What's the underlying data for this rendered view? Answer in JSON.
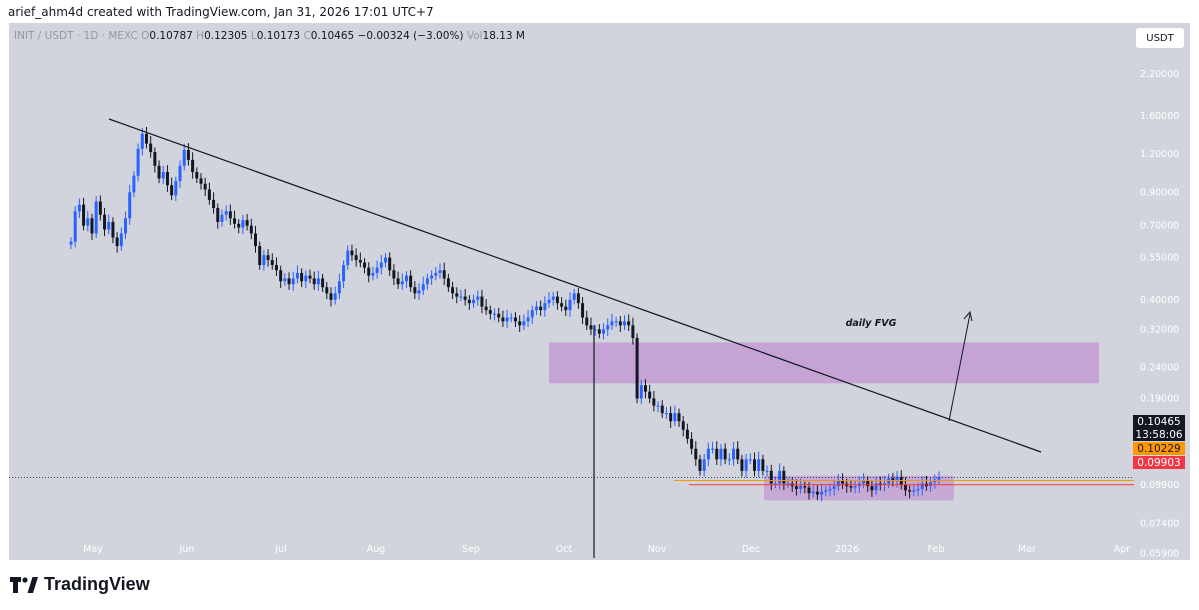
{
  "header": {
    "attribution": "arief_ahm4d created with TradingView.com, Jan 31, 2026 17:01 UTC+7"
  },
  "legend": {
    "symbol": "INIT / USDT · 1D · MEXC",
    "open_label": "O",
    "open": "0.10787",
    "high_label": "H",
    "high": "0.12305",
    "low_label": "L",
    "low": "0.10173",
    "close_label": "C",
    "close": "0.10465",
    "change": "−0.00324 (−3.00%)",
    "vol_label": "Vol",
    "vol": "18.13 M"
  },
  "currency_button": "USDT",
  "price_tags": {
    "last": "0.10465",
    "countdown": "13:58:06",
    "orange": "0.10229",
    "red": "0.09903"
  },
  "brand": {
    "name": "TradingView",
    "logo_icon": "tradingview-logo-icon"
  },
  "colors": {
    "background": "#d1d4dc",
    "candle_up": "#2962ff",
    "candle_down": "#131722",
    "zone": "#c39bd3",
    "orange_tag": "#ff9800",
    "red_tag": "#f23645"
  },
  "chart_data": {
    "type": "candlestick",
    "y_scale": "log",
    "y_ticks": [
      "2.80000",
      "2.20000",
      "1.60000",
      "1.20000",
      "0.90000",
      "0.70000",
      "0.55000",
      "0.40000",
      "0.32000",
      "0.24000",
      "0.19000",
      "0.15000",
      "0.12000",
      "0.09900",
      "0.07400",
      "0.05900",
      "0.04700"
    ],
    "x_ticks": [
      "May",
      "Jun",
      "Jul",
      "Aug",
      "Sep",
      "Oct",
      "Nov",
      "Dec",
      "2026",
      "Feb",
      "Mar",
      "Apr"
    ],
    "annotations": [
      {
        "type": "text",
        "label": "daily FVG"
      },
      {
        "type": "zone",
        "name": "daily-fvg",
        "price_low": 0.213,
        "price_high": 0.29
      },
      {
        "type": "zone",
        "name": "accumulation",
        "price_low": 0.088,
        "price_high": 0.106
      },
      {
        "type": "trendline",
        "from": 1.55,
        "to": 0.08
      }
    ],
    "series": [
      {
        "closes": [
          0.62,
          0.78,
          0.82,
          0.7,
          0.74,
          0.66,
          0.84,
          0.76,
          0.68,
          0.72,
          0.64,
          0.6,
          0.66,
          0.74,
          0.9,
          1.02,
          1.25,
          1.4,
          1.3,
          1.22,
          1.1,
          1.0,
          1.05,
          0.95,
          0.88,
          0.98,
          1.1,
          1.24,
          1.15,
          1.05,
          1.0,
          0.96,
          0.92,
          0.85,
          0.8,
          0.72,
          0.76,
          0.78,
          0.74,
          0.71,
          0.69,
          0.73,
          0.7,
          0.66,
          0.6,
          0.52,
          0.56,
          0.54,
          0.52,
          0.5,
          0.46,
          0.47,
          0.45,
          0.47,
          0.49,
          0.46,
          0.48,
          0.47,
          0.45,
          0.47,
          0.44,
          0.42,
          0.4,
          0.42,
          0.46,
          0.52,
          0.58,
          0.56,
          0.54,
          0.53,
          0.51,
          0.48,
          0.49,
          0.51,
          0.53,
          0.55,
          0.5,
          0.47,
          0.45,
          0.46,
          0.48,
          0.44,
          0.42,
          0.43,
          0.45,
          0.47,
          0.48,
          0.49,
          0.5,
          0.47,
          0.44,
          0.42,
          0.41,
          0.41,
          0.4,
          0.39,
          0.4,
          0.41,
          0.38,
          0.37,
          0.36,
          0.36,
          0.35,
          0.34,
          0.35,
          0.35,
          0.34,
          0.33,
          0.34,
          0.35,
          0.37,
          0.38,
          0.37,
          0.39,
          0.4,
          0.41,
          0.39,
          0.38,
          0.37,
          0.4,
          0.42,
          0.39,
          0.35,
          0.33,
          0.32,
          0.32,
          0.31,
          0.32,
          0.33,
          0.34,
          0.34,
          0.33,
          0.34,
          0.33,
          0.3,
          0.19,
          0.21,
          0.2,
          0.19,
          0.18,
          0.18,
          0.17,
          0.17,
          0.16,
          0.17,
          0.16,
          0.15,
          0.14,
          0.13,
          0.12,
          0.11,
          0.12,
          0.13,
          0.13,
          0.12,
          0.13,
          0.12,
          0.12,
          0.13,
          0.12,
          0.11,
          0.12,
          0.12,
          0.11,
          0.12,
          0.11,
          0.11,
          0.1,
          0.1,
          0.11,
          0.1,
          0.1,
          0.098,
          0.096,
          0.098,
          0.097,
          0.093,
          0.094,
          0.092,
          0.094,
          0.095,
          0.096,
          0.098,
          0.102,
          0.1,
          0.098,
          0.097,
          0.098,
          0.1,
          0.102,
          0.098,
          0.095,
          0.1,
          0.099,
          0.1,
          0.104,
          0.102,
          0.105,
          0.099,
          0.095,
          0.094,
          0.095,
          0.096,
          0.1,
          0.098,
          0.101,
          0.103,
          0.1047
        ]
      }
    ]
  }
}
